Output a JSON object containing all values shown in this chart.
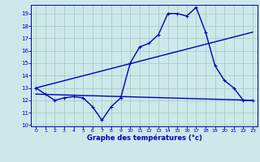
{
  "background_color": "#cce8e8",
  "grid_color": "#aacccc",
  "line_color": "#0000bb",
  "xlabel": "Graphe des températures (°c)",
  "xlabel_color": "#0000bb",
  "tick_color": "#0000bb",
  "ylim": [
    9.9,
    19.7
  ],
  "xlim": [
    -0.5,
    23.5
  ],
  "yticks": [
    10,
    11,
    12,
    13,
    14,
    15,
    16,
    17,
    18,
    19
  ],
  "xticks": [
    0,
    1,
    2,
    3,
    4,
    5,
    6,
    7,
    8,
    9,
    10,
    11,
    12,
    13,
    14,
    15,
    16,
    17,
    18,
    19,
    20,
    21,
    22,
    23
  ],
  "series1_x": [
    0,
    1,
    2,
    3,
    4,
    5,
    6,
    7,
    8,
    9,
    10,
    11,
    12,
    13,
    14,
    15,
    16,
    17,
    18,
    19,
    20,
    21,
    22,
    23
  ],
  "series1_y": [
    13.0,
    12.5,
    12.0,
    12.2,
    12.3,
    12.2,
    11.5,
    10.4,
    11.5,
    12.2,
    15.0,
    16.3,
    16.6,
    17.3,
    19.0,
    19.0,
    18.8,
    19.5,
    17.5,
    14.8,
    13.6,
    13.0,
    12.0,
    12.0
  ],
  "series2_x": [
    0,
    23
  ],
  "series2_y": [
    12.5,
    12.0
  ],
  "series3_x": [
    0,
    23
  ],
  "series3_y": [
    13.0,
    17.5
  ]
}
